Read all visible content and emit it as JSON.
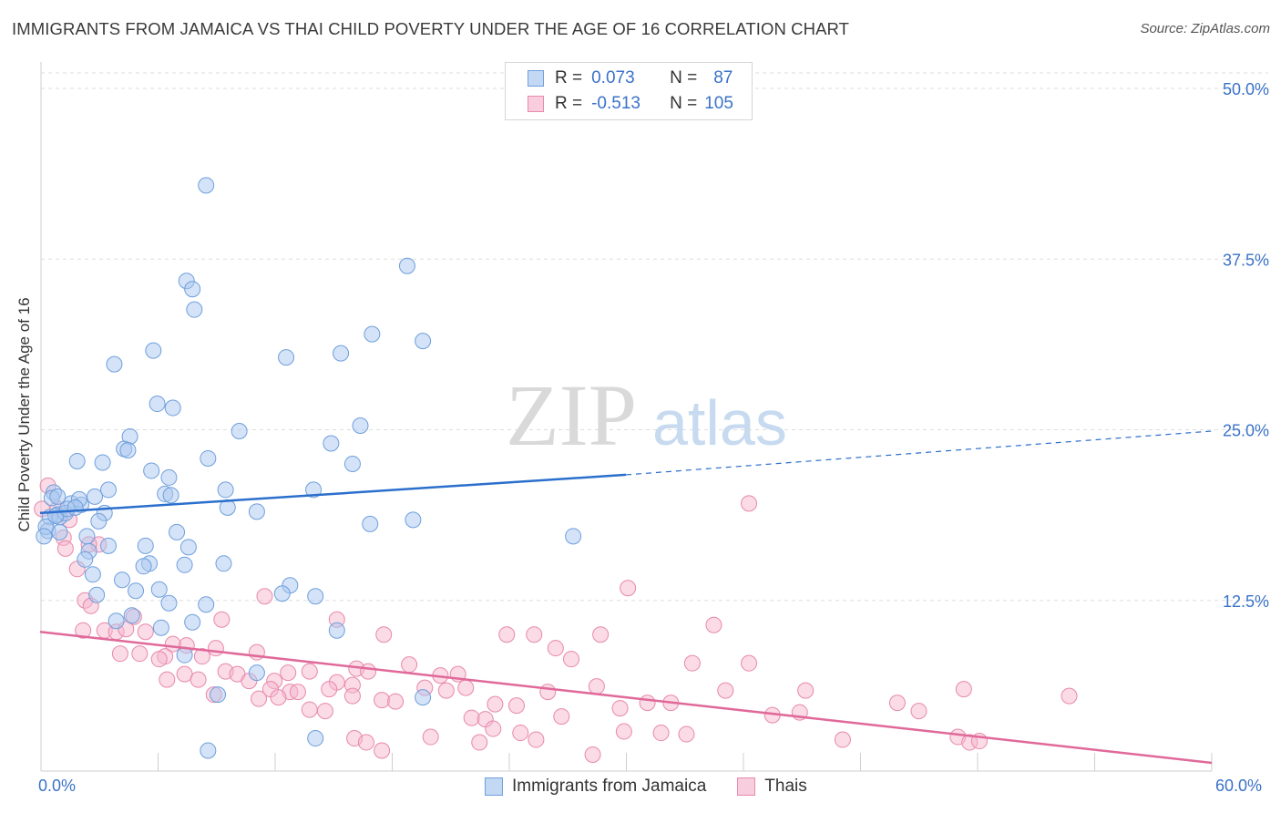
{
  "title": "IMMIGRANTS FROM JAMAICA VS THAI CHILD POVERTY UNDER THE AGE OF 16 CORRELATION CHART",
  "source": "Source: ZipAtlas.com",
  "watermark": {
    "zip": "ZIP",
    "atlas": "atlas"
  },
  "colors": {
    "blue_fill": "#a9c8ef",
    "blue_stroke": "#6f9fdc",
    "blue_line": "#2b6fcd",
    "pink_fill": "#f5b8cd",
    "pink_stroke": "#e889ab",
    "pink_line": "#e0699a",
    "tick_label": "#3a72c8",
    "grid": "#dddddd"
  },
  "legend_top": {
    "rows": [
      {
        "r_label": "R =",
        "r_value": "0.073",
        "n_label": "N =",
        "n_value": "87"
      },
      {
        "r_label": "R =",
        "r_value": "-0.513",
        "n_label": "N =",
        "n_value": "105"
      }
    ]
  },
  "legend_bottom": [
    "Immigrants from Jamaica",
    "Thais"
  ],
  "chart_data": {
    "type": "scatter",
    "title": "IMMIGRANTS FROM JAMAICA VS THAI CHILD POVERTY UNDER THE AGE OF 16 CORRELATION CHART",
    "xlabel": "",
    "ylabel": "Child Poverty Under the Age of 16",
    "xlim": [
      0,
      60
    ],
    "ylim": [
      0,
      52.5
    ],
    "x_tick_labels": [
      "0.0%",
      "60.0%"
    ],
    "y_ticks": [
      12.5,
      25.0,
      37.5,
      50.0
    ],
    "y_tick_labels": [
      "12.5%",
      "25.0%",
      "37.5%",
      "50.0%"
    ],
    "grid": true,
    "legend_position": "top-center",
    "series": [
      {
        "name": "Immigrants from Jamaica",
        "color": "#a9c8ef",
        "trend": {
          "x0": 0,
          "y0": 18.9,
          "x1": 30,
          "y1": 21.7,
          "dashed_to_x": 60,
          "dashed_to_y": 24.9
        },
        "points": [
          [
            8.5,
            42.9
          ],
          [
            18.8,
            37.0
          ],
          [
            7.5,
            35.9
          ],
          [
            7.8,
            35.3
          ],
          [
            7.9,
            33.8
          ],
          [
            17.0,
            32.0
          ],
          [
            19.6,
            31.5
          ],
          [
            5.8,
            30.8
          ],
          [
            12.6,
            30.3
          ],
          [
            15.4,
            30.6
          ],
          [
            3.8,
            29.8
          ],
          [
            6.8,
            26.6
          ],
          [
            6.0,
            26.9
          ],
          [
            10.2,
            24.9
          ],
          [
            16.4,
            25.3
          ],
          [
            4.6,
            24.5
          ],
          [
            14.9,
            24.0
          ],
          [
            4.3,
            23.6
          ],
          [
            4.5,
            23.5
          ],
          [
            8.6,
            22.9
          ],
          [
            1.9,
            22.7
          ],
          [
            3.2,
            22.6
          ],
          [
            16.0,
            22.5
          ],
          [
            5.7,
            22.0
          ],
          [
            6.6,
            21.5
          ],
          [
            3.5,
            20.6
          ],
          [
            14.0,
            20.6
          ],
          [
            6.4,
            20.3
          ],
          [
            9.5,
            20.6
          ],
          [
            0.7,
            20.4
          ],
          [
            2.8,
            20.1
          ],
          [
            6.7,
            20.2
          ],
          [
            1.6,
            19.6
          ],
          [
            2.1,
            19.5
          ],
          [
            9.6,
            19.3
          ],
          [
            11.1,
            19.0
          ],
          [
            3.3,
            18.9
          ],
          [
            0.9,
            18.8
          ],
          [
            0.5,
            18.6
          ],
          [
            1.0,
            18.6
          ],
          [
            19.1,
            18.4
          ],
          [
            16.9,
            18.1
          ],
          [
            0.4,
            17.6
          ],
          [
            1.0,
            17.5
          ],
          [
            7.0,
            17.5
          ],
          [
            2.4,
            17.2
          ],
          [
            27.3,
            17.2
          ],
          [
            5.4,
            16.5
          ],
          [
            7.6,
            16.4
          ],
          [
            3.5,
            16.5
          ],
          [
            2.5,
            16.1
          ],
          [
            2.3,
            15.5
          ],
          [
            5.6,
            15.2
          ],
          [
            5.3,
            15.0
          ],
          [
            7.4,
            15.1
          ],
          [
            9.4,
            15.2
          ],
          [
            2.7,
            14.4
          ],
          [
            4.2,
            14.0
          ],
          [
            12.8,
            13.6
          ],
          [
            4.9,
            13.2
          ],
          [
            6.1,
            13.3
          ],
          [
            12.4,
            13.0
          ],
          [
            14.1,
            12.8
          ],
          [
            2.9,
            12.9
          ],
          [
            6.6,
            12.3
          ],
          [
            8.5,
            12.2
          ],
          [
            4.7,
            11.4
          ],
          [
            3.9,
            11.0
          ],
          [
            7.8,
            10.9
          ],
          [
            6.2,
            10.5
          ],
          [
            15.2,
            10.3
          ],
          [
            7.4,
            8.5
          ],
          [
            11.1,
            7.2
          ],
          [
            9.1,
            5.6
          ],
          [
            19.6,
            5.4
          ],
          [
            14.1,
            2.4
          ],
          [
            8.6,
            1.5
          ],
          [
            0.3,
            17.9
          ],
          [
            0.2,
            17.2
          ],
          [
            1.3,
            18.9
          ],
          [
            0.8,
            18.7
          ],
          [
            1.4,
            19.2
          ],
          [
            2.0,
            19.9
          ],
          [
            0.6,
            20.0
          ],
          [
            3.0,
            18.3
          ],
          [
            1.8,
            19.3
          ],
          [
            0.9,
            20.1
          ]
        ]
      },
      {
        "name": "Thais",
        "color": "#f5b8cd",
        "trend": {
          "x0": 0,
          "y0": 10.2,
          "x1": 60,
          "y1": 0.6
        },
        "points": [
          [
            36.3,
            19.6
          ],
          [
            0.4,
            20.9
          ],
          [
            0.9,
            19.2
          ],
          [
            1.5,
            18.4
          ],
          [
            3.0,
            16.6
          ],
          [
            1.2,
            17.1
          ],
          [
            1.3,
            16.3
          ],
          [
            2.5,
            16.6
          ],
          [
            1.9,
            14.8
          ],
          [
            30.1,
            13.4
          ],
          [
            11.5,
            12.8
          ],
          [
            2.3,
            12.5
          ],
          [
            2.6,
            12.1
          ],
          [
            4.8,
            11.3
          ],
          [
            9.3,
            11.1
          ],
          [
            15.2,
            11.1
          ],
          [
            34.5,
            10.7
          ],
          [
            3.3,
            10.3
          ],
          [
            3.9,
            10.2
          ],
          [
            5.4,
            10.2
          ],
          [
            17.6,
            10.0
          ],
          [
            23.9,
            10.0
          ],
          [
            25.3,
            10.0
          ],
          [
            28.7,
            10.0
          ],
          [
            7.5,
            9.2
          ],
          [
            9.0,
            9.0
          ],
          [
            11.1,
            8.7
          ],
          [
            26.4,
            9.0
          ],
          [
            4.1,
            8.6
          ],
          [
            5.1,
            8.6
          ],
          [
            6.4,
            8.4
          ],
          [
            6.1,
            8.2
          ],
          [
            27.2,
            8.2
          ],
          [
            33.4,
            7.9
          ],
          [
            36.3,
            7.9
          ],
          [
            18.9,
            7.8
          ],
          [
            16.2,
            7.5
          ],
          [
            16.8,
            7.3
          ],
          [
            7.4,
            7.1
          ],
          [
            9.5,
            7.3
          ],
          [
            10.1,
            7.1
          ],
          [
            13.8,
            7.3
          ],
          [
            12.7,
            7.2
          ],
          [
            10.7,
            6.6
          ],
          [
            12.0,
            6.6
          ],
          [
            20.5,
            7.0
          ],
          [
            21.4,
            7.1
          ],
          [
            6.5,
            6.7
          ],
          [
            8.1,
            6.7
          ],
          [
            15.2,
            6.5
          ],
          [
            16.0,
            6.3
          ],
          [
            14.8,
            6.0
          ],
          [
            11.8,
            6.0
          ],
          [
            12.8,
            5.8
          ],
          [
            13.2,
            5.8
          ],
          [
            19.7,
            6.1
          ],
          [
            20.8,
            5.9
          ],
          [
            21.8,
            6.1
          ],
          [
            26.0,
            5.8
          ],
          [
            28.5,
            6.2
          ],
          [
            35.1,
            5.9
          ],
          [
            39.2,
            5.9
          ],
          [
            47.3,
            6.0
          ],
          [
            8.9,
            5.6
          ],
          [
            11.2,
            5.3
          ],
          [
            12.2,
            5.4
          ],
          [
            16.0,
            5.5
          ],
          [
            17.5,
            5.2
          ],
          [
            18.2,
            5.1
          ],
          [
            23.3,
            4.9
          ],
          [
            24.4,
            4.8
          ],
          [
            31.1,
            5.0
          ],
          [
            32.3,
            5.0
          ],
          [
            43.9,
            5.0
          ],
          [
            52.7,
            5.5
          ],
          [
            29.7,
            4.6
          ],
          [
            37.5,
            4.1
          ],
          [
            14.6,
            4.4
          ],
          [
            13.8,
            4.5
          ],
          [
            22.1,
            3.9
          ],
          [
            22.8,
            3.8
          ],
          [
            26.7,
            4.0
          ],
          [
            38.9,
            4.3
          ],
          [
            45.0,
            4.4
          ],
          [
            23.2,
            3.1
          ],
          [
            24.6,
            2.8
          ],
          [
            29.9,
            2.9
          ],
          [
            31.8,
            2.8
          ],
          [
            33.1,
            2.7
          ],
          [
            16.1,
            2.4
          ],
          [
            16.7,
            2.1
          ],
          [
            20.0,
            2.5
          ],
          [
            22.5,
            2.1
          ],
          [
            25.4,
            2.3
          ],
          [
            41.1,
            2.3
          ],
          [
            47.0,
            2.5
          ],
          [
            47.6,
            2.1
          ],
          [
            48.1,
            2.2
          ],
          [
            17.5,
            1.5
          ],
          [
            28.3,
            1.2
          ],
          [
            2.2,
            10.3
          ],
          [
            4.4,
            10.4
          ],
          [
            6.8,
            9.3
          ],
          [
            8.3,
            8.4
          ],
          [
            0.1,
            19.2
          ]
        ]
      }
    ]
  }
}
